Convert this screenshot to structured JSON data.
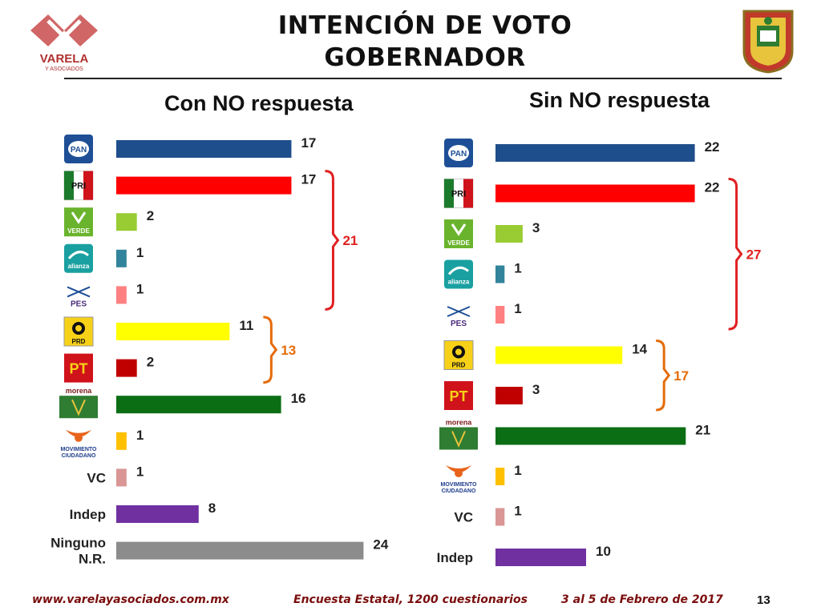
{
  "header": {
    "title_line1": "INTENCIÓN DE VOTO",
    "title_line2": "GOBERNADOR",
    "logo_text": "VARELA",
    "logo_subtext": "Y ASOCIADOS",
    "seal_icon": "estado-de-mexico-seal-icon"
  },
  "footer": {
    "website": "www.varelayasociados.com.mx",
    "survey": "Encuesta Estatal, 1200 cuestionarios",
    "date": "3 al 5 de Febrero de 2017",
    "page": "13"
  },
  "party_logos": {
    "PAN": {
      "text": "PAN",
      "bg": "#1e4f96",
      "fg": "#ffffff"
    },
    "PRI": {
      "text": "PRI",
      "bg": "#ffffff",
      "fg": "#1b7a2b"
    },
    "VERDE": {
      "text": "VERDE",
      "bg": "#6ab42d",
      "fg": "#ffffff"
    },
    "alianza": {
      "text": "alianza",
      "bg": "#1aa0a0",
      "fg": "#ffffff"
    },
    "PES": {
      "text": "PES",
      "bg": "#ffffff",
      "fg": "#4a2a7a"
    },
    "PRD": {
      "text": "PRD",
      "bg": "#f7d117",
      "fg": "#111111"
    },
    "PT": {
      "text": "PT",
      "bg": "#d0121b",
      "fg": "#f7d117"
    },
    "morena": {
      "text": "morena",
      "bg": "#2f7d32",
      "fg": "#7a1a1a"
    },
    "MC": {
      "text": "MOVIMIENTO CIUDADANO",
      "bg": "#ffffff",
      "fg": "#e8641b"
    }
  },
  "chart_data": [
    {
      "type": "bar",
      "orientation": "horizontal",
      "title": "Con NO respuesta",
      "categories": [
        "PAN",
        "PRI",
        "VERDE",
        "alianza",
        "PES",
        "PRD",
        "PT",
        "morena",
        "MC",
        "VC",
        "Indep",
        "Ninguno N.R."
      ],
      "text_labels": {
        "VC": "VC",
        "Indep": "Indep",
        "Ninguno N.R.": [
          "Ninguno",
          "N.R."
        ]
      },
      "values": [
        17,
        17,
        2,
        1,
        1,
        11,
        2,
        16,
        1,
        1,
        8,
        24
      ],
      "colors": [
        "#1f4e8c",
        "#ff0000",
        "#99cc33",
        "#31849b",
        "#ff8080",
        "#ffff00",
        "#c00000",
        "#0b6e14",
        "#ffc000",
        "#d99694",
        "#7030a0",
        "#8c8c8c"
      ],
      "brackets": [
        {
          "from": "PRI",
          "to": "PES",
          "label": "21",
          "color": "#e02020"
        },
        {
          "from": "PRD",
          "to": "PT",
          "label": "13",
          "color": "#e46c0a"
        }
      ]
    },
    {
      "type": "bar",
      "orientation": "horizontal",
      "title": "Sin NO respuesta",
      "categories": [
        "PAN",
        "PRI",
        "VERDE",
        "alianza",
        "PES",
        "PRD",
        "PT",
        "morena",
        "MC",
        "VC",
        "Indep"
      ],
      "text_labels": {
        "VC": "VC",
        "Indep": "Indep"
      },
      "values": [
        22,
        22,
        3,
        1,
        1,
        14,
        3,
        21,
        1,
        1,
        10
      ],
      "colors": [
        "#1f4e8c",
        "#ff0000",
        "#99cc33",
        "#31849b",
        "#ff8080",
        "#ffff00",
        "#c00000",
        "#0b6e14",
        "#ffc000",
        "#d99694",
        "#7030a0"
      ],
      "brackets": [
        {
          "from": "PRI",
          "to": "PES",
          "label": "27",
          "color": "#e02020"
        },
        {
          "from": "PRD",
          "to": "PT",
          "label": "17",
          "color": "#e46c0a"
        }
      ]
    }
  ]
}
